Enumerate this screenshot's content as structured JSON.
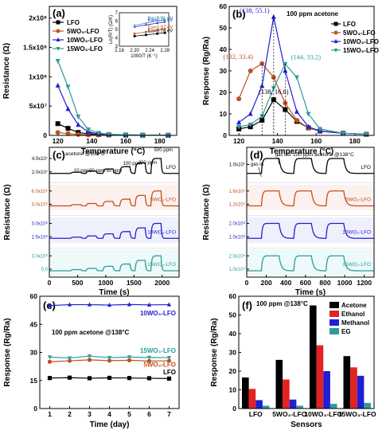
{
  "colors": {
    "LFO": "#000000",
    "5WO3-LFO": "#c0501e",
    "10WO3-LFO": "#1f1fd4",
    "15WO3-LFO": "#2d9c9c",
    "Acetone": "#000000",
    "Ethanol": "#e32222",
    "Methanol": "#1f1fd4",
    "EG": "#2d9c9c"
  },
  "chart_data": [
    {
      "id": "a",
      "type": "line",
      "label": "(a)",
      "xlabel": "Temperature (°C)",
      "ylabel": "Resistance (Ω)",
      "xlim": [
        115,
        190
      ],
      "ylim": [
        0,
        220000000.0
      ],
      "xticks": [
        120,
        140,
        160,
        180
      ],
      "yticks": [
        {
          "v": 0,
          "t": "0"
        },
        {
          "v": 50000000.0,
          "t": "5x10⁷"
        },
        {
          "v": 100000000.0,
          "t": "1x10⁸"
        },
        {
          "v": 150000000.0,
          "t": "1.5x10⁸"
        },
        {
          "v": 200000000.0,
          "t": "2x10⁸"
        }
      ],
      "x": [
        120,
        126,
        132,
        138,
        144,
        150,
        160,
        170,
        185
      ],
      "series": [
        {
          "name": "LFO",
          "values": [
            20000000.0,
            12000000.0,
            5000000.0,
            2500000.0,
            1500000.0,
            1000000.0,
            500000.0,
            300000.0,
            200000.0
          ]
        },
        {
          "name": "5WO3-LFO",
          "values": [
            5000000.0,
            3000000.0,
            1500000.0,
            800000.0,
            500000.0,
            300000.0,
            200000.0,
            100000.0,
            100000.0
          ]
        },
        {
          "name": "10WO3-LFO",
          "values": [
            85000000.0,
            45000000.0,
            18000000.0,
            6000000.0,
            2500000.0,
            1500000.0,
            800000.0,
            500000.0,
            300000.0
          ]
        },
        {
          "name": "15WO3-LFO",
          "values": [
            127000000.0,
            83000000.0,
            32000000.0,
            10000000.0,
            4000000.0,
            2000000.0,
            1000000.0,
            600000.0,
            400000.0
          ]
        }
      ],
      "legend": [
        "LFO",
        "5WO₃-LFO",
        "10WO₃-LFO",
        "15WO₃-LFO"
      ],
      "inset": {
        "xlabel": "1000/T (K⁻¹)",
        "ylabel": "Ln(R/T) (Ω/K)",
        "xlim": [
          2.16,
          2.29
        ],
        "ylim": [
          3,
          7
        ],
        "xticks": [
          2.16,
          2.2,
          2.24,
          2.28
        ],
        "yticks": [
          3,
          4,
          5,
          6,
          7
        ],
        "x": [
          2.2,
          2.23,
          2.26,
          2.28
        ],
        "series": [
          {
            "name": "LFO",
            "values": [
              4.2,
              4.35,
              4.5,
              4.6
            ],
            "ea": "Ea=0.78 eV"
          },
          {
            "name": "5WO3-LFO",
            "values": [
              4.5,
              4.7,
              4.9,
              5.05
            ],
            "ea": "Ea=0.97 eV"
          },
          {
            "name": "10WO3-LFO",
            "values": [
              5.3,
              5.55,
              5.75,
              5.9
            ],
            "ea": "Ea=0.76 eV"
          },
          {
            "name": "15WO3-LFO",
            "values": [
              5.5,
              5.75,
              6.0,
              6.15
            ],
            "ea": "Ea=0.91 eV"
          }
        ]
      }
    },
    {
      "id": "b",
      "type": "line",
      "label": "(b)",
      "title": "100 ppm acetone",
      "xlabel": "Temperature (°C)",
      "ylabel": "Response (Rg/Ra)",
      "xlim": [
        115,
        190
      ],
      "ylim": [
        0,
        60
      ],
      "xticks": [
        120,
        140,
        160,
        180
      ],
      "yticks": [
        0,
        10,
        20,
        30,
        40,
        50,
        60
      ],
      "x": [
        120,
        126,
        132,
        138,
        144,
        150,
        156,
        162,
        174,
        186
      ],
      "series": [
        {
          "name": "LFO",
          "values": [
            3.0,
            4.0,
            7.0,
            16.6,
            12.0,
            6.5,
            3.5,
            2.0,
            1.0,
            0.5
          ]
        },
        {
          "name": "5WO3-LFO",
          "values": [
            17.0,
            30.0,
            33.4,
            27.0,
            15.0,
            7.0,
            3.5,
            2.0,
            1.0,
            0.5
          ]
        },
        {
          "name": "10WO3-LFO",
          "values": [
            6.0,
            10.0,
            23.0,
            55.1,
            30.0,
            11.0,
            4.0,
            2.0,
            1.0,
            0.5
          ]
        },
        {
          "name": "15WO3-LFO",
          "values": [
            4.0,
            5.0,
            9.0,
            22.0,
            33.2,
            27.0,
            10.0,
            3.0,
            1.0,
            0.5
          ]
        }
      ],
      "legend": [
        "LFO",
        "5WO₃-LFO",
        "10WO₃-LFO",
        "15WO₃-LFO"
      ],
      "annotations": [
        {
          "text": "(138, 55.1)",
          "x": 138,
          "y": 55.1,
          "color": "#1f1fd4"
        },
        {
          "text": "(132, 33.4)",
          "x": 132,
          "y": 33.4,
          "color": "#c0501e"
        },
        {
          "text": "(144, 33.2)",
          "x": 144,
          "y": 33.2,
          "color": "#2d9c9c"
        },
        {
          "text": "(138, 16.6)",
          "x": 138,
          "y": 16.6,
          "color": "#000000"
        }
      ]
    },
    {
      "id": "c",
      "type": "line",
      "label": "(c)",
      "title": "acetone @138°C",
      "xlabel": "Time (s)",
      "ylabel": "Resistance (Ω)",
      "xlim": [
        0,
        2300
      ],
      "xticks": [
        0,
        500,
        1000,
        1500,
        2000
      ],
      "pulses": [
        {
          "t": 380,
          "ppm": "10 ppm",
          "h": 0.08
        },
        {
          "t": 650,
          "ppm": "20 ppm",
          "h": 0.16
        },
        {
          "t": 950,
          "ppm": "50 ppm",
          "h": 0.3
        },
        {
          "t": 1250,
          "ppm": "100 ppm",
          "h": 0.45
        },
        {
          "t": 1520,
          "ppm": "200 ppm",
          "h": 0.7
        },
        {
          "t": 1800,
          "ppm": "500 ppm",
          "h": 1.0
        }
      ],
      "pulse_width": 180,
      "traces": [
        {
          "name": "LFO",
          "label": "LFO",
          "yticks": [
            "2.0x10⁷",
            "4.0x10⁷"
          ]
        },
        {
          "name": "5WO3-LFO",
          "label": "5WO₃-LFO",
          "yticks": [
            "3.0x10⁸",
            "6.0x10⁸"
          ]
        },
        {
          "name": "10WO3-LFO",
          "label": "10WO₃-LFO",
          "yticks": [
            "1.5x10⁸",
            "3.0x10⁸"
          ]
        },
        {
          "name": "15WO3-LFO",
          "label": "15WO₃-LFO",
          "yticks": [
            "0.0",
            "3.0x10⁸"
          ]
        }
      ]
    },
    {
      "id": "d",
      "type": "line",
      "label": "(d)",
      "title": "100 ppm acetone @138°C",
      "xlabel": "Time (s)",
      "ylabel": "Resistance (Ω)",
      "xlim": [
        0,
        1300
      ],
      "xticks": [
        0,
        200,
        400,
        600,
        800,
        1000,
        1200
      ],
      "cycles": [
        {
          "on": 150,
          "off": 330
        },
        {
          "on": 480,
          "off": 660
        },
        {
          "on": 810,
          "off": 990
        }
      ],
      "notes": {
        "gas_in": "gas in",
        "gas_out": "gas out"
      },
      "traces": [
        {
          "name": "LFO",
          "label": "LFO",
          "yticks": [
            "1.0x10⁷"
          ]
        },
        {
          "name": "5WO3-LFO",
          "label": "5WO₃-LFO",
          "yticks": [
            "1.2x10⁸",
            "1.6x10⁸"
          ]
        },
        {
          "name": "10WO3-LFO",
          "label": "10WO₃-LFO",
          "yticks": [
            "1.0x10⁸",
            "2.0x10⁸"
          ]
        },
        {
          "name": "15WO3-LFO",
          "label": "15WO₃-LFO",
          "yticks": [
            "1.0x10⁸",
            "2.0x10⁸"
          ]
        }
      ]
    },
    {
      "id": "e",
      "type": "line",
      "label": "(e)",
      "title": "100 ppm acetone @138°C",
      "xlabel": "Time (day)",
      "ylabel": "Response (Rg/Ra)",
      "xlim": [
        0.5,
        7.5
      ],
      "ylim": [
        0,
        60
      ],
      "xticks": [
        1,
        2,
        3,
        4,
        5,
        6,
        7
      ],
      "yticks": [
        0,
        15,
        30,
        45,
        60
      ],
      "x": [
        1,
        2,
        3,
        4,
        5,
        6,
        7
      ],
      "series": [
        {
          "name": "LFO",
          "label": "LFO",
          "values": [
            16.3,
            16.5,
            16.2,
            16.4,
            16.3,
            16.2,
            16.0
          ]
        },
        {
          "name": "5WO3-LFO",
          "label": "5WO₃-LFO",
          "values": [
            25.0,
            25.5,
            26.0,
            25.6,
            25.8,
            25.4,
            25.5
          ]
        },
        {
          "name": "10WO3-LFO",
          "label": "10WO₃-LFO",
          "values": [
            55.0,
            55.5,
            55.5,
            55.3,
            55.6,
            55.4,
            55.5
          ]
        },
        {
          "name": "15WO3-LFO",
          "label": "15WO₃-LFO",
          "values": [
            27.5,
            27.0,
            28.0,
            27.2,
            27.5,
            27.3,
            27.2
          ]
        }
      ]
    },
    {
      "id": "f",
      "type": "bar",
      "label": "(f)",
      "title": "100 ppm @138°C",
      "xlabel": "Sensors",
      "ylabel": "Response (Rg/Ra)",
      "ylim": [
        0,
        60
      ],
      "yticks": [
        0,
        10,
        20,
        30,
        40,
        50,
        60
      ],
      "categories": [
        "LFO",
        "5WO₃-LFO",
        "10WO₃-LFO",
        "15WO₃-LFO"
      ],
      "series": [
        {
          "name": "Acetone",
          "values": [
            16.6,
            26.0,
            55.1,
            28.0
          ]
        },
        {
          "name": "Ethanol",
          "values": [
            10.5,
            15.5,
            33.8,
            22.0
          ]
        },
        {
          "name": "Methanol",
          "values": [
            4.5,
            4.8,
            20.0,
            17.5
          ]
        },
        {
          "name": "EG",
          "values": [
            1.5,
            1.5,
            2.5,
            3.0
          ]
        }
      ]
    }
  ]
}
